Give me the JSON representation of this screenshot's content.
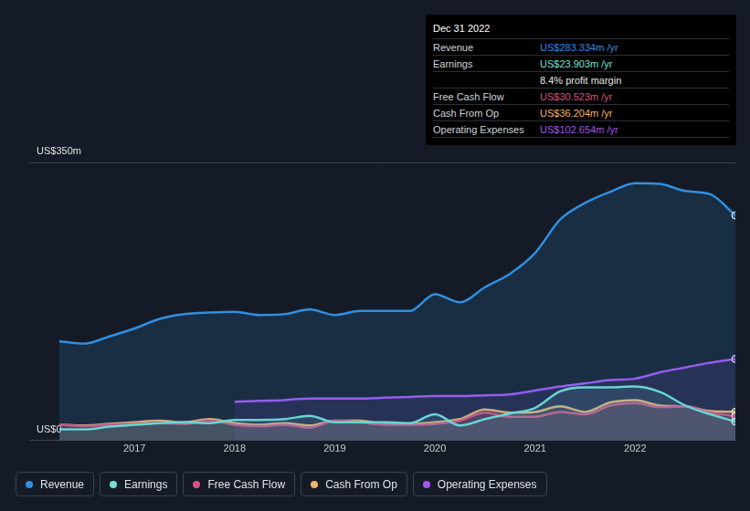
{
  "chart_data": {
    "type": "line",
    "x": [
      2016.25,
      2016.5,
      2016.75,
      2017,
      2017.25,
      2017.5,
      2017.75,
      2018,
      2018.25,
      2018.5,
      2018.75,
      2019,
      2019.25,
      2019.5,
      2019.75,
      2020,
      2020.25,
      2020.5,
      2020.75,
      2021,
      2021.25,
      2021.5,
      2021.75,
      2022,
      2022.25,
      2022.5,
      2022.75,
      2023
    ],
    "xlim": [
      2015.95,
      2023
    ],
    "xticks": [
      2017,
      2018,
      2019,
      2020,
      2021,
      2022
    ],
    "ylim": [
      0,
      350
    ],
    "yticks": [
      {
        "value": 0,
        "label": "US$0"
      },
      {
        "value": 350,
        "label": "US$350m"
      }
    ],
    "grid": "y",
    "legend": "bottom-left",
    "series": [
      {
        "name": "Revenue",
        "color": "#2f8fe0",
        "values": [
          125,
          122,
          131,
          141,
          153,
          159,
          161,
          162,
          158,
          159,
          165,
          158,
          163,
          163,
          163,
          184,
          174,
          193,
          210,
          236,
          278,
          299,
          313,
          324,
          323,
          314,
          310,
          283.334
        ]
      },
      {
        "name": "Earnings",
        "color": "#72e3d2",
        "values": [
          14,
          14,
          17.5,
          20,
          22,
          23,
          22,
          26,
          26,
          27,
          31,
          23,
          23,
          23,
          22,
          33,
          19,
          27,
          34,
          41,
          62,
          67,
          67,
          68,
          61,
          44,
          33,
          23.903
        ]
      },
      {
        "name": "Free Cash Flow",
        "color": "#d9527f",
        "values": [
          20,
          18,
          20,
          21,
          22,
          21,
          25,
          20,
          18,
          20,
          16,
          25,
          23,
          20,
          20,
          21,
          25,
          35,
          30,
          30,
          36,
          33,
          44,
          47,
          42,
          43,
          35,
          30.523
        ]
      },
      {
        "name": "Cash From Op",
        "color": "#f1b26b",
        "values": [
          20,
          19,
          21,
          23,
          25,
          23,
          27,
          22,
          20,
          22,
          19,
          25,
          25,
          21,
          21,
          23,
          27,
          39,
          35,
          36,
          43,
          36,
          48,
          51,
          44,
          43,
          37,
          36.204
        ]
      },
      {
        "name": "Operating Expenses",
        "color": "#a855f0",
        "values": [
          null,
          null,
          null,
          null,
          null,
          null,
          null,
          49,
          50,
          51,
          53,
          53,
          53,
          54,
          55,
          56,
          56,
          57,
          58,
          63,
          68,
          72,
          76,
          78,
          86,
          92,
          98,
          102.654
        ]
      }
    ],
    "info_box": {
      "title": "Dec 31 2022",
      "rows": [
        {
          "label": "Revenue",
          "value": "US$283.334m /yr"
        },
        {
          "label": "Earnings",
          "value": "US$23.903m /yr",
          "note": "8.4% profit margin"
        },
        {
          "label": "Free Cash Flow",
          "value": "US$30.523m /yr"
        },
        {
          "label": "Cash From Op",
          "value": "US$36.204m /yr"
        },
        {
          "label": "Operating Expenses",
          "value": "US$102.654m /yr"
        }
      ]
    }
  }
}
